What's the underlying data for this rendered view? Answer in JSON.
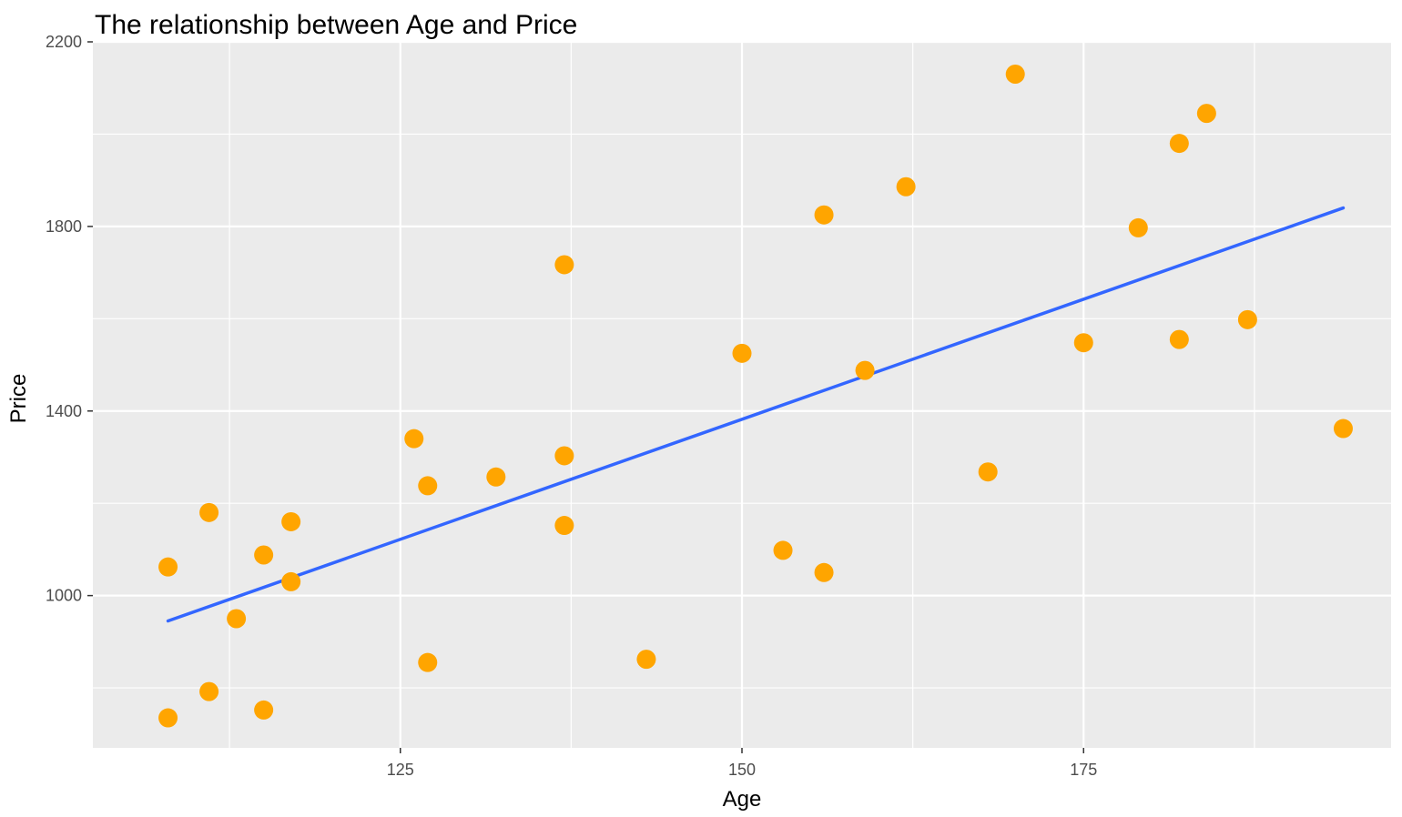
{
  "chart_data": {
    "type": "scatter",
    "title": "The relationship between Age and Price",
    "xlabel": "Age",
    "ylabel": "Price",
    "xlim": [
      102.5,
      197.5
    ],
    "ylim": [
      670,
      2200
    ],
    "x_major_ticks": [
      125,
      150,
      175
    ],
    "x_minor_ticks": [
      112.5,
      137.5,
      162.5,
      187.5
    ],
    "y_major_ticks": [
      1000,
      1400,
      1800,
      2200
    ],
    "y_minor_ticks": [
      800,
      1200,
      1600,
      2000
    ],
    "grid": true,
    "legend": "none",
    "colors": {
      "panel_background": "#ebebeb",
      "grid": "#ffffff",
      "points": "#ffa500",
      "trend_line": "#3366ff"
    },
    "points": [
      {
        "x": 108,
        "y": 1062
      },
      {
        "x": 108,
        "y": 735
      },
      {
        "x": 111,
        "y": 1180
      },
      {
        "x": 111,
        "y": 792
      },
      {
        "x": 113,
        "y": 950
      },
      {
        "x": 115,
        "y": 1088
      },
      {
        "x": 115,
        "y": 752
      },
      {
        "x": 117,
        "y": 1160
      },
      {
        "x": 117,
        "y": 1030
      },
      {
        "x": 126,
        "y": 1340
      },
      {
        "x": 127,
        "y": 1238
      },
      {
        "x": 127,
        "y": 855
      },
      {
        "x": 132,
        "y": 1257
      },
      {
        "x": 137,
        "y": 1717
      },
      {
        "x": 137,
        "y": 1303
      },
      {
        "x": 137,
        "y": 1152
      },
      {
        "x": 143,
        "y": 862
      },
      {
        "x": 150,
        "y": 1525
      },
      {
        "x": 153,
        "y": 1098
      },
      {
        "x": 156,
        "y": 1825
      },
      {
        "x": 156,
        "y": 1050
      },
      {
        "x": 159,
        "y": 1488
      },
      {
        "x": 162,
        "y": 1886
      },
      {
        "x": 168,
        "y": 1268
      },
      {
        "x": 170,
        "y": 2130
      },
      {
        "x": 175,
        "y": 1548
      },
      {
        "x": 179,
        "y": 1797
      },
      {
        "x": 182,
        "y": 1980
      },
      {
        "x": 182,
        "y": 1555
      },
      {
        "x": 184,
        "y": 2045
      },
      {
        "x": 187,
        "y": 1598
      },
      {
        "x": 194,
        "y": 1362
      }
    ],
    "trend_line": {
      "method": "linear",
      "x": [
        108,
        194
      ],
      "y": [
        945,
        1840
      ]
    }
  }
}
